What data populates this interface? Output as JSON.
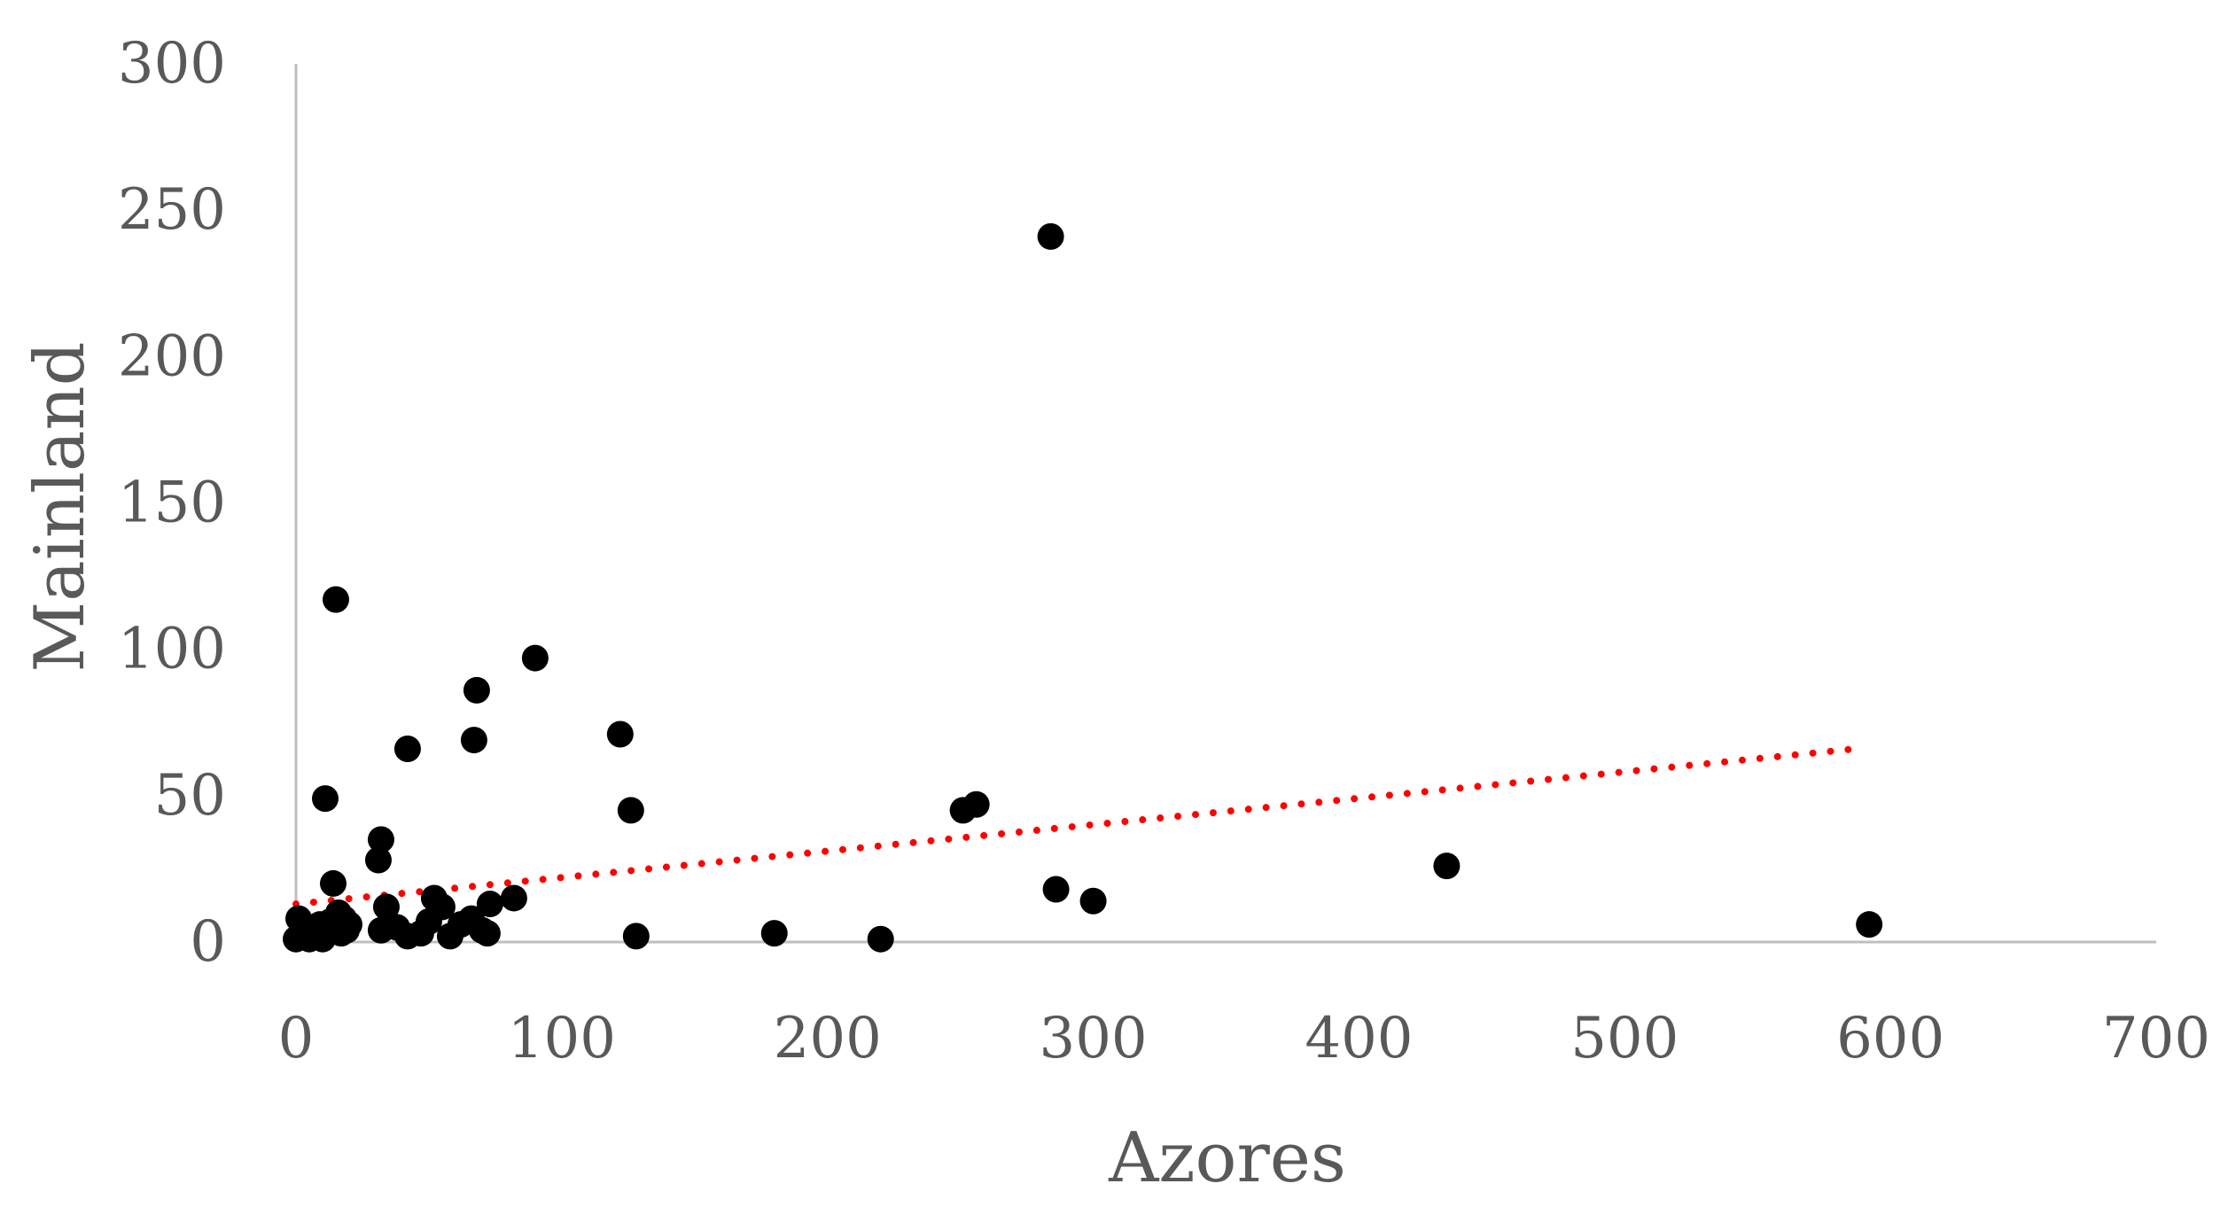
{
  "chart_data": {
    "type": "scatter",
    "title": "",
    "xlabel": "Azores",
    "ylabel": "Mainland",
    "xlim": [
      0,
      700
    ],
    "ylim": [
      0,
      300
    ],
    "x_ticks": [
      "0",
      "100",
      "200",
      "300",
      "400",
      "500",
      "600",
      "700"
    ],
    "y_ticks": [
      "0",
      "50",
      "100",
      "150",
      "200",
      "250",
      "300"
    ],
    "grid": false,
    "legend": "none",
    "series": [
      {
        "marker_color": "#000000",
        "points": [
          [
            0,
            1
          ],
          [
            1,
            8
          ],
          [
            3,
            3
          ],
          [
            5,
            1
          ],
          [
            6,
            5
          ],
          [
            8,
            2
          ],
          [
            9,
            6
          ],
          [
            10,
            1
          ],
          [
            11,
            49
          ],
          [
            12,
            3
          ],
          [
            13,
            7
          ],
          [
            14,
            20
          ],
          [
            14,
            5
          ],
          [
            15,
            117
          ],
          [
            16,
            10
          ],
          [
            17,
            3
          ],
          [
            18,
            8
          ],
          [
            19,
            4
          ],
          [
            20,
            6
          ],
          [
            31,
            28
          ],
          [
            32,
            35
          ],
          [
            32,
            4
          ],
          [
            34,
            12
          ],
          [
            38,
            5
          ],
          [
            42,
            2
          ],
          [
            42,
            66
          ],
          [
            47,
            3
          ],
          [
            50,
            7
          ],
          [
            52,
            15
          ],
          [
            55,
            12
          ],
          [
            58,
            2
          ],
          [
            62,
            6
          ],
          [
            66,
            8
          ],
          [
            67,
            69
          ],
          [
            68,
            86
          ],
          [
            70,
            4
          ],
          [
            72,
            3
          ],
          [
            73,
            13
          ],
          [
            82,
            15
          ],
          [
            90,
            97
          ],
          [
            122,
            71
          ],
          [
            126,
            45
          ],
          [
            128,
            2
          ],
          [
            180,
            3
          ],
          [
            220,
            1
          ],
          [
            251,
            45
          ],
          [
            256,
            47
          ],
          [
            284,
            241
          ],
          [
            286,
            18
          ],
          [
            300,
            14
          ],
          [
            433,
            26
          ],
          [
            592,
            6
          ]
        ]
      }
    ],
    "trendline": {
      "style": "dotted",
      "color": "#ff0000",
      "from": [
        0,
        13
      ],
      "to": [
        587,
        66
      ]
    }
  }
}
